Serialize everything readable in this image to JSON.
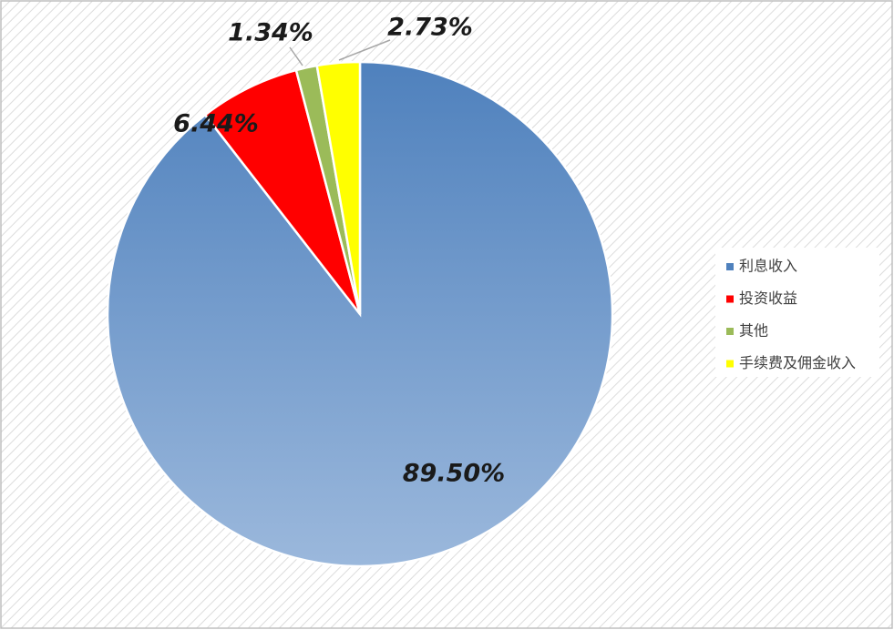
{
  "chart_data": {
    "type": "pie",
    "categories": [
      "利息收入",
      "投资收益",
      "其他",
      "手续费及佣金收入"
    ],
    "values": [
      89.5,
      6.44,
      1.34,
      2.73
    ],
    "value_labels": [
      "89.50%",
      "6.44%",
      "1.34%",
      "2.73%"
    ],
    "colors": [
      "#4f81bd",
      "#ff0000",
      "#9bbb59",
      "#ffff00"
    ],
    "legend": "right"
  }
}
